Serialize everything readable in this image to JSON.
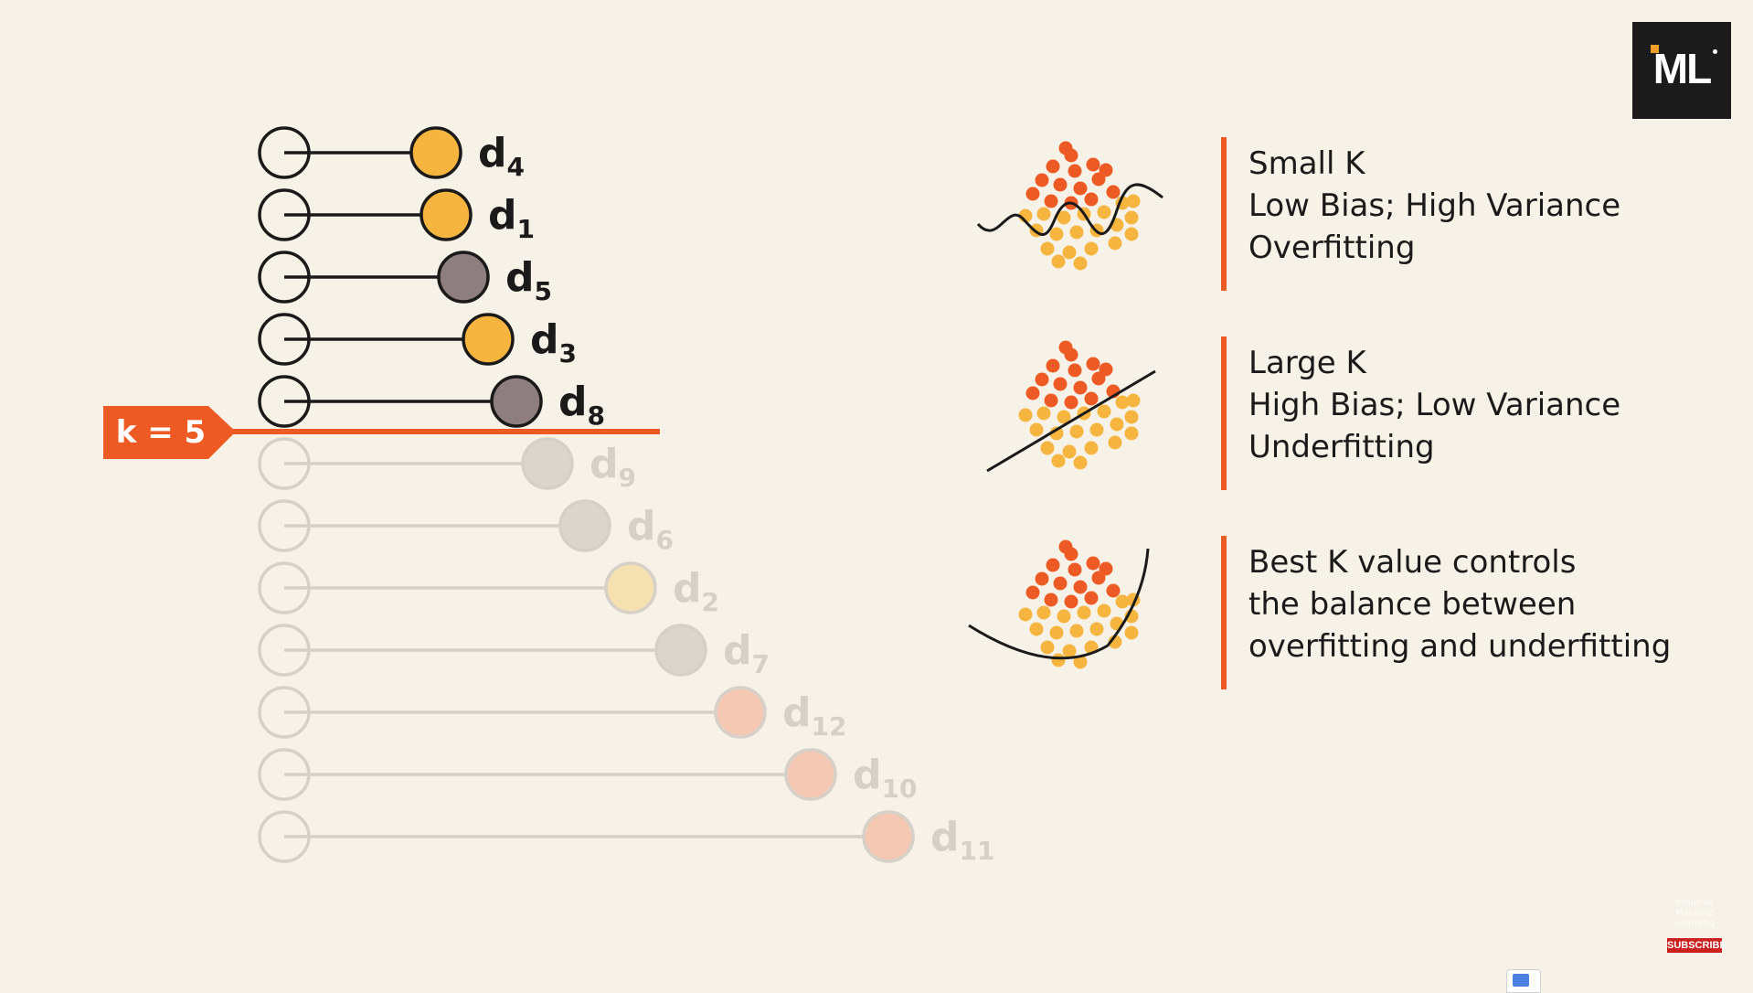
{
  "k_label": "k = 5",
  "distances": [
    {
      "label": "d",
      "sub": "4",
      "color": "#f5b53f",
      "active": true
    },
    {
      "label": "d",
      "sub": "1",
      "color": "#f5b53f",
      "active": true
    },
    {
      "label": "d",
      "sub": "5",
      "color": "#8e7e80",
      "active": true
    },
    {
      "label": "d",
      "sub": "3",
      "color": "#f5b53f",
      "active": true
    },
    {
      "label": "d",
      "sub": "8",
      "color": "#8e7e80",
      "active": true
    },
    {
      "label": "d",
      "sub": "9",
      "color": "#dcd5cd",
      "active": false
    },
    {
      "label": "d",
      "sub": "6",
      "color": "#dcd5cd",
      "active": false
    },
    {
      "label": "d",
      "sub": "2",
      "color": "#f5e0b0",
      "active": false
    },
    {
      "label": "d",
      "sub": "7",
      "color": "#dcd5cd",
      "active": false
    },
    {
      "label": "d",
      "sub": "12",
      "color": "#f5c8b4",
      "active": false
    },
    {
      "label": "d",
      "sub": "10",
      "color": "#f5c8b4",
      "active": false
    },
    {
      "label": "d",
      "sub": "11",
      "color": "#f5c8b4",
      "active": false
    }
  ],
  "descriptions": [
    {
      "lines": [
        "Small K",
        "Low Bias; High Variance",
        "Overfitting"
      ],
      "boundary": "wavy"
    },
    {
      "lines": [
        "Large K",
        "High Bias; Low Variance",
        "Underfitting"
      ],
      "boundary": "line"
    },
    {
      "lines": [
        "Best K value controls",
        "the balance between",
        "overfitting and underfitting"
      ],
      "boundary": "curve"
    }
  ],
  "colors": {
    "accent": "#ee5a24",
    "class_a": "#ee5a24",
    "class_b": "#f5b53f",
    "background": "#f7f2e8"
  },
  "logo": {
    "text": "ML"
  },
  "watermark": {
    "text": "Intuitive Machine Learning",
    "subscribe": "SUBSCRIBE"
  }
}
